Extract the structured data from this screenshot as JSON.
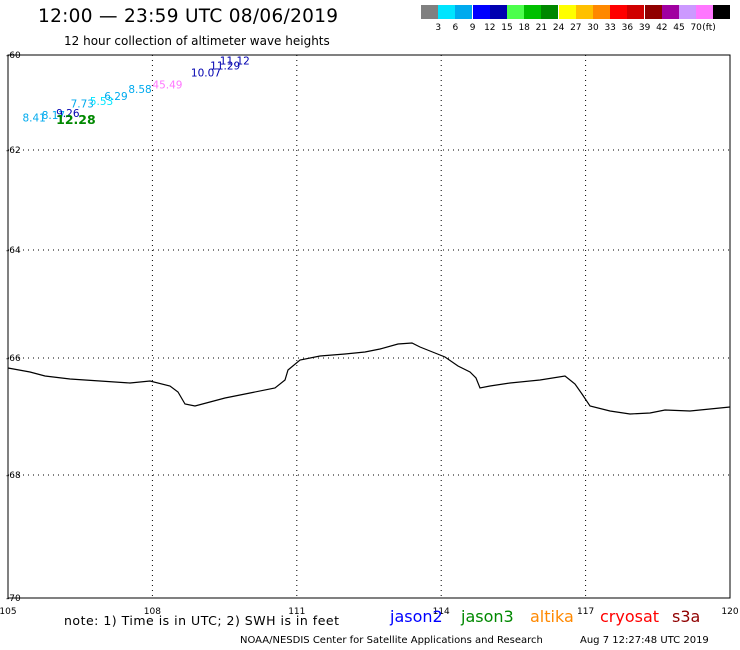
{
  "title": "12:00 — 23:59 UTC 08/06/2019",
  "subtitle": "12 hour collection of altimeter wave heights",
  "colorbar": {
    "colors": [
      "#808080",
      "#00e5ff",
      "#00aaee",
      "#0000ff",
      "#0000b0",
      "#4cff4c",
      "#00c000",
      "#008800",
      "#ffff00",
      "#ffc000",
      "#ff8800",
      "#ff0000",
      "#d00000",
      "#900000",
      "#a000a0",
      "#cc99ff",
      "#ff77ff",
      "#000000"
    ],
    "ticks": [
      "3",
      "6",
      "9",
      "12",
      "15",
      "18",
      "21",
      "24",
      "27",
      "30",
      "33",
      "36",
      "39",
      "42",
      "45",
      "70"
    ],
    "unit": "(ft)"
  },
  "map": {
    "lat_labels": [
      "-60",
      "-62",
      "-64",
      "-66",
      "-68",
      "-70"
    ],
    "lon_labels": [
      "105",
      "108",
      "111",
      "114",
      "117",
      "120"
    ],
    "coastline": "Antarctic coastline",
    "observations": [
      {
        "lon": 105.3,
        "lat": -61.4,
        "text": "8.41",
        "color": "#00aaee"
      },
      {
        "lon": 105.7,
        "lat": -61.35,
        "text": "8.17",
        "color": "#00aaee"
      },
      {
        "lon": 106.0,
        "lat": -61.3,
        "text": "9.26",
        "color": "#0000b0"
      },
      {
        "lon": 106.0,
        "lat": -61.45,
        "text": "12.28",
        "color": "#008800",
        "big": true
      },
      {
        "lon": 106.3,
        "lat": -61.1,
        "text": "7.73",
        "color": "#00aaee"
      },
      {
        "lon": 106.7,
        "lat": -61.05,
        "text": "5.53",
        "color": "#00e5ff"
      },
      {
        "lon": 107.0,
        "lat": -60.95,
        "text": "6.29",
        "color": "#00aaee"
      },
      {
        "lon": 107.5,
        "lat": -60.8,
        "text": "8.58",
        "color": "#00aaee"
      },
      {
        "lon": 108.0,
        "lat": -60.7,
        "text": "45.49",
        "color": "#ff77ff"
      },
      {
        "lon": 108.8,
        "lat": -60.45,
        "text": "10.07",
        "color": "#0000b0"
      },
      {
        "lon": 109.2,
        "lat": -60.3,
        "text": "11.29",
        "color": "#0000b0"
      },
      {
        "lon": 109.4,
        "lat": -60.2,
        "text": "11.12",
        "color": "#0000b0"
      }
    ]
  },
  "footer": {
    "note": "note: 1) Time is in UTC; 2) SWH is in feet",
    "satellites": [
      {
        "name": "jason2",
        "color": "#0000ff"
      },
      {
        "name": "jason3",
        "color": "#008800"
      },
      {
        "name": "altika",
        "color": "#ff8800"
      },
      {
        "name": "cryosat",
        "color": "#ff0000"
      },
      {
        "name": "s3a",
        "color": "#900000"
      }
    ],
    "credit": "NOAA/NESDIS Center for Satellite Applications and Research",
    "timestamp": "Aug  7 12:27:48 UTC 2019"
  }
}
